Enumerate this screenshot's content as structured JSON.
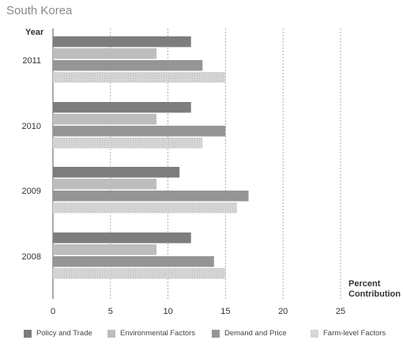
{
  "chart_data": {
    "type": "bar",
    "orientation": "horizontal",
    "title": "South Korea",
    "category_axis_label": "Year",
    "value_axis_label": [
      "Percent",
      "Contribution"
    ],
    "categories": [
      "2011",
      "2010",
      "2009",
      "2008"
    ],
    "series": [
      {
        "name": "Policy and Trade",
        "values": [
          12,
          12,
          11,
          12
        ],
        "color": "#7d7d7d"
      },
      {
        "name": "Environmental Factors",
        "values": [
          9,
          9,
          9,
          9
        ],
        "color": "#bdbdbd"
      },
      {
        "name": "Demand and Price",
        "values": [
          13,
          15,
          17,
          14
        ],
        "color": "#959595"
      },
      {
        "name": "Farm-level Factors",
        "values": [
          15,
          13,
          16,
          15
        ],
        "color": "#d3d3d3"
      }
    ],
    "xlim": [
      0,
      25
    ],
    "xticks": [
      0,
      5,
      10,
      15,
      20,
      25
    ],
    "grid": "vertical-dashed",
    "legend_position": "bottom"
  }
}
